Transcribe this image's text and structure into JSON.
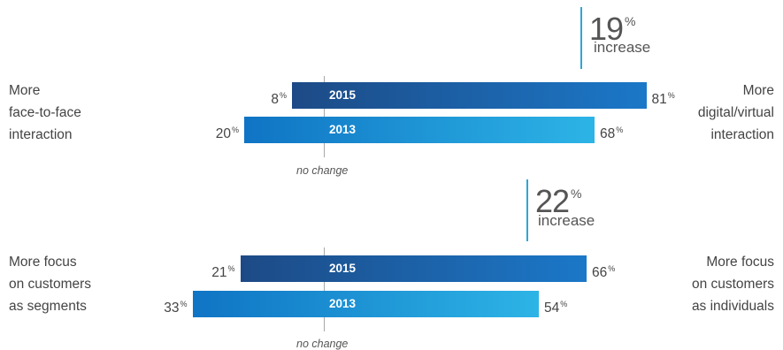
{
  "chart_data": [
    {
      "type": "bar",
      "left_label": [
        "More",
        "face-to-face",
        "interaction"
      ],
      "right_label": [
        "More",
        "digital/virtual",
        "interaction"
      ],
      "increase": {
        "value": "19",
        "unit": "%",
        "word": "increase"
      },
      "zero_label": "no change",
      "percent_symbol": "%",
      "series": [
        {
          "name": "2015",
          "left": 8,
          "right": 81,
          "color_from": "#1d4a86",
          "color_to": "#1b78c8"
        },
        {
          "name": "2013",
          "left": 20,
          "right": 68,
          "color_from": "#0f74c4",
          "color_to": "#2db4e6"
        }
      ]
    },
    {
      "type": "bar",
      "left_label": [
        "More focus",
        "on customers",
        "as segments"
      ],
      "right_label": [
        "More focus",
        "on customers",
        "as individuals"
      ],
      "increase": {
        "value": "22",
        "unit": "%",
        "word": "increase"
      },
      "zero_label": "no change",
      "percent_symbol": "%",
      "series": [
        {
          "name": "2015",
          "left": 21,
          "right": 66,
          "color_from": "#1d4a86",
          "color_to": "#1b78c8"
        },
        {
          "name": "2013",
          "left": 33,
          "right": 54,
          "color_from": "#0f74c4",
          "color_to": "#2db4e6"
        }
      ]
    }
  ]
}
